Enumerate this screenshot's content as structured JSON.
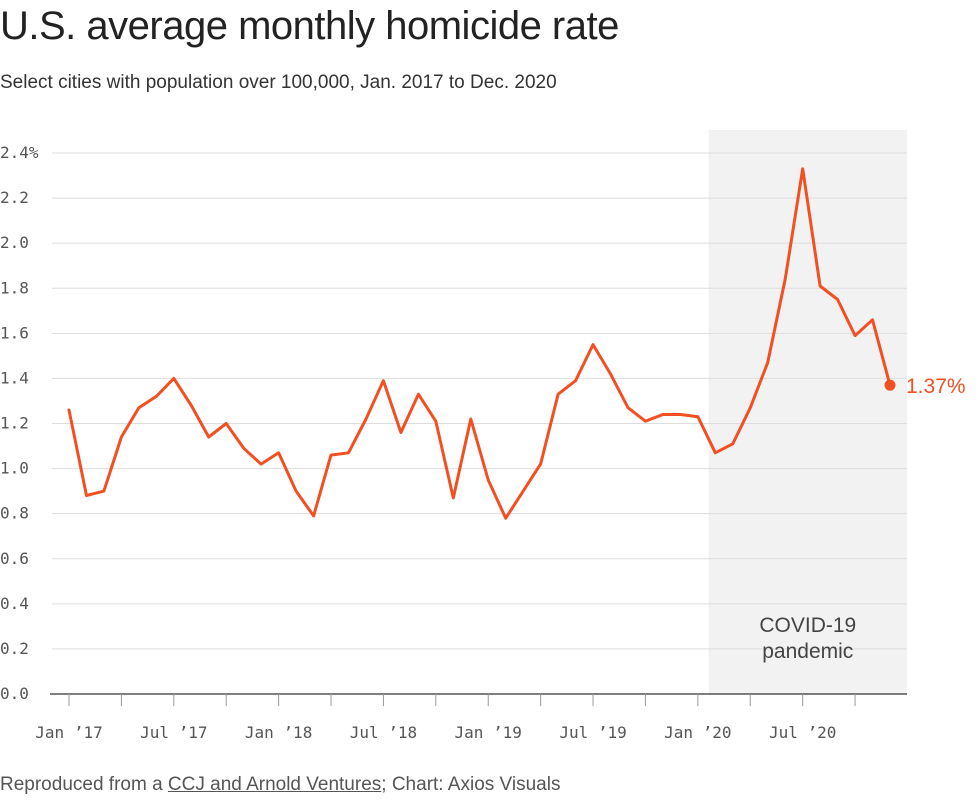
{
  "header": {
    "title": "U.S. average monthly homicide rate",
    "subtitle": "Select cities with population over 100,000, Jan. 2017 to Dec. 2020"
  },
  "footer": {
    "prefix": "Reproduced from a ",
    "link_text": "CCJ and Arnold Ventures",
    "suffix": "; Chart: Axios Visuals"
  },
  "colors": {
    "line": "#f25022",
    "band": "#f2f2f2",
    "grid": "#dddddd",
    "axis": "#333333"
  },
  "chart_data": {
    "type": "line",
    "title": "U.S. average monthly homicide rate",
    "subtitle": "Select cities with population over 100,000, Jan. 2017 to Dec. 2020",
    "x": [
      "2017-01",
      "2017-02",
      "2017-03",
      "2017-04",
      "2017-05",
      "2017-06",
      "2017-07",
      "2017-08",
      "2017-09",
      "2017-10",
      "2017-11",
      "2017-12",
      "2018-01",
      "2018-02",
      "2018-03",
      "2018-04",
      "2018-05",
      "2018-06",
      "2018-07",
      "2018-08",
      "2018-09",
      "2018-10",
      "2018-11",
      "2018-12",
      "2019-01",
      "2019-02",
      "2019-03",
      "2019-04",
      "2019-05",
      "2019-06",
      "2019-07",
      "2019-08",
      "2019-09",
      "2019-10",
      "2019-11",
      "2019-12",
      "2020-01",
      "2020-02",
      "2020-03",
      "2020-04",
      "2020-05",
      "2020-06",
      "2020-07",
      "2020-08",
      "2020-09",
      "2020-10",
      "2020-11",
      "2020-12"
    ],
    "series": [
      {
        "values": [
          1.26,
          0.88,
          0.9,
          1.14,
          1.27,
          1.32,
          1.4,
          1.28,
          1.14,
          1.2,
          1.09,
          1.02,
          1.07,
          0.9,
          0.79,
          1.06,
          1.07,
          1.22,
          1.39,
          1.16,
          1.33,
          1.21,
          0.87,
          1.22,
          0.95,
          0.78,
          0.9,
          1.02,
          1.33,
          1.39,
          1.55,
          1.42,
          1.27,
          1.21,
          1.24,
          1.24,
          1.23,
          1.07,
          1.11,
          1.27,
          1.47,
          1.84,
          2.33,
          1.81,
          1.75,
          1.59,
          1.66,
          1.37
        ]
      }
    ],
    "end_label": "1.37%",
    "ylim": [
      0,
      2.4
    ],
    "y_ticks": [
      0,
      0.2,
      0.4,
      0.6,
      0.8,
      1.0,
      1.2,
      1.4,
      1.6,
      1.8,
      2.0,
      2.2,
      2.4
    ],
    "y_tick_labels": [
      "0.0",
      "0.2",
      "0.4",
      "0.6",
      "0.8",
      "1.0",
      "1.2",
      "1.4",
      "1.6",
      "1.8",
      "2.0",
      "2.2",
      "2.4%"
    ],
    "x_tick_labels": [
      {
        "at": "2017-01",
        "label": "Jan ’17"
      },
      {
        "at": "2017-07",
        "label": "Jul ’17"
      },
      {
        "at": "2018-01",
        "label": "Jan ’18"
      },
      {
        "at": "2018-07",
        "label": "Jul ’18"
      },
      {
        "at": "2019-01",
        "label": "Jan ’19"
      },
      {
        "at": "2019-07",
        "label": "Jul ’19"
      },
      {
        "at": "2020-01",
        "label": "Jan ’20"
      },
      {
        "at": "2020-07",
        "label": "Jul ’20"
      }
    ],
    "annotation": {
      "label_lines": [
        "COVID-19",
        "pandemic"
      ],
      "band_start": "2020-02",
      "band_end": "2020-12"
    },
    "grid": true
  }
}
